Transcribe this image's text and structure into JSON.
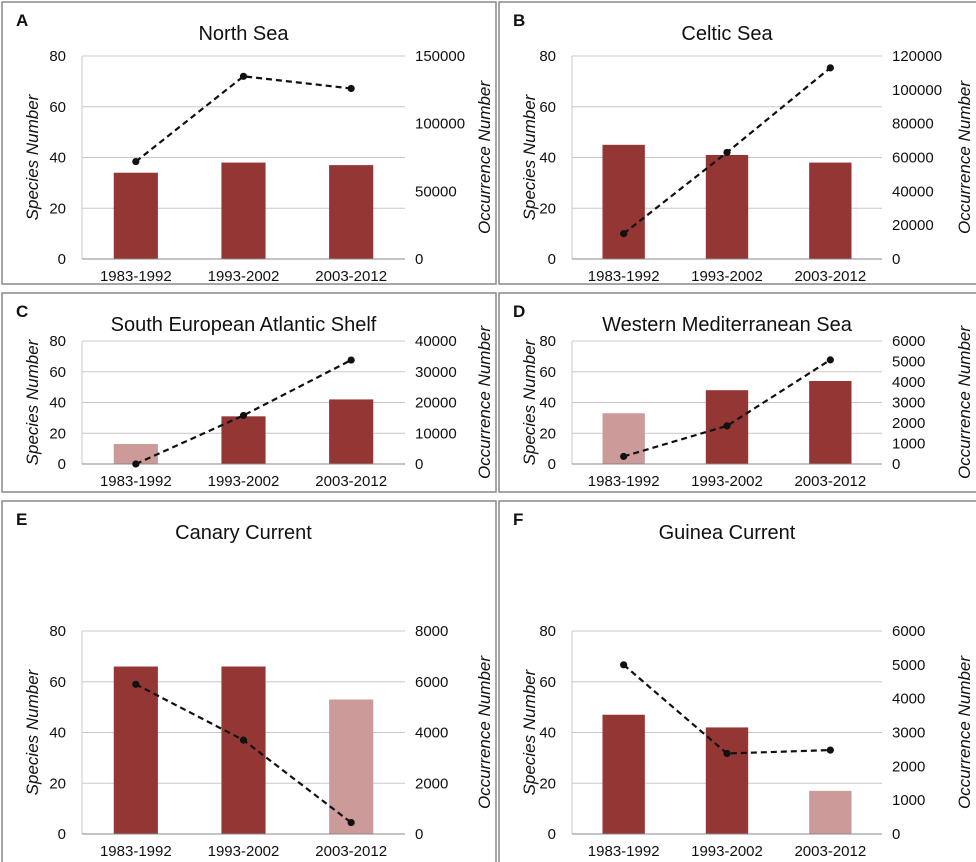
{
  "colors": {
    "bar_dark": "#943634",
    "bar_light": "#cd9a9a",
    "line": "#111111",
    "grid": "#c8c8c8",
    "panel_border": "#888888"
  },
  "chart_data": [
    {
      "letter": "A",
      "title": "North Sea",
      "type": "bar+line",
      "categories": [
        "1983-1992",
        "1993-2002",
        "2003-2012"
      ],
      "ylabel": "Species Number",
      "y2label": "Occurrence Number",
      "ylim": [
        0,
        80
      ],
      "yticks": [
        0,
        20,
        40,
        60,
        80
      ],
      "y2lim": [
        0,
        150000
      ],
      "y2ticks": [
        0,
        50000,
        100000,
        150000
      ],
      "bars": [
        34,
        38,
        37
      ],
      "bar_style": [
        "dark",
        "dark",
        "dark"
      ],
      "line": [
        72000,
        135000,
        126000
      ],
      "grid": true
    },
    {
      "letter": "B",
      "title": "Celtic Sea",
      "type": "bar+line",
      "categories": [
        "1983-1992",
        "1993-2002",
        "2003-2012"
      ],
      "ylabel": "Species Number",
      "y2label": "Occurrence Number",
      "ylim": [
        0,
        80
      ],
      "yticks": [
        0,
        20,
        40,
        60,
        80
      ],
      "y2lim": [
        0,
        120000
      ],
      "y2ticks": [
        0,
        20000,
        40000,
        60000,
        80000,
        100000,
        120000
      ],
      "bars": [
        45,
        41,
        38
      ],
      "bar_style": [
        "dark",
        "dark",
        "dark"
      ],
      "line": [
        15000,
        63000,
        113000
      ],
      "grid": true
    },
    {
      "letter": "C",
      "title": "South European Atlantic Shelf",
      "type": "bar+line",
      "categories": [
        "1983-1992",
        "1993-2002",
        "2003-2012"
      ],
      "ylabel": "Species Number",
      "y2label": "Occurrence Number",
      "ylim": [
        0,
        80
      ],
      "yticks": [
        0,
        20,
        40,
        60,
        80
      ],
      "y2lim": [
        0,
        40000
      ],
      "y2ticks": [
        0,
        10000,
        20000,
        30000,
        40000
      ],
      "bars": [
        13,
        31,
        42
      ],
      "bar_style": [
        "light",
        "dark",
        "dark"
      ],
      "line": [
        0,
        15800,
        33800
      ],
      "grid": true
    },
    {
      "letter": "D",
      "title": "Western Mediterranean Sea",
      "type": "bar+line",
      "categories": [
        "1983-1992",
        "1993-2002",
        "2003-2012"
      ],
      "ylabel": "Species Number",
      "y2label": "Occurrence Number",
      "ylim": [
        0,
        80
      ],
      "yticks": [
        0,
        20,
        40,
        60,
        80
      ],
      "y2lim": [
        0,
        6000
      ],
      "y2ticks": [
        0,
        1000,
        2000,
        3000,
        4000,
        5000,
        6000
      ],
      "bars": [
        33,
        48,
        54
      ],
      "bar_style": [
        "light",
        "dark",
        "dark"
      ],
      "line": [
        370,
        1860,
        5080
      ],
      "grid": true
    },
    {
      "letter": "E",
      "title": "Canary Current",
      "type": "bar+line",
      "categories": [
        "1983-1992",
        "1993-2002",
        "2003-2012"
      ],
      "ylabel": "Species Number",
      "y2label": "Occurrence Number",
      "ylim": [
        0,
        80
      ],
      "yticks": [
        0,
        20,
        40,
        60,
        80
      ],
      "y2lim": [
        0,
        8000
      ],
      "y2ticks": [
        0,
        2000,
        4000,
        6000,
        8000
      ],
      "bars": [
        66,
        66,
        53
      ],
      "bar_style": [
        "dark",
        "dark",
        "light"
      ],
      "line": [
        5900,
        3700,
        450
      ],
      "grid": true
    },
    {
      "letter": "F",
      "title": "Guinea Current",
      "type": "bar+line",
      "categories": [
        "1983-1992",
        "1993-2002",
        "2003-2012"
      ],
      "ylabel": "Species Number",
      "y2label": "Occurrence Number",
      "ylim": [
        0,
        80
      ],
      "yticks": [
        0,
        20,
        40,
        60,
        80
      ],
      "y2lim": [
        0,
        6000
      ],
      "y2ticks": [
        0,
        1000,
        2000,
        3000,
        4000,
        5000,
        6000
      ],
      "bars": [
        47,
        42,
        17
      ],
      "bar_style": [
        "dark",
        "dark",
        "light"
      ],
      "line": [
        5000,
        2380,
        2480
      ],
      "grid": true
    }
  ]
}
